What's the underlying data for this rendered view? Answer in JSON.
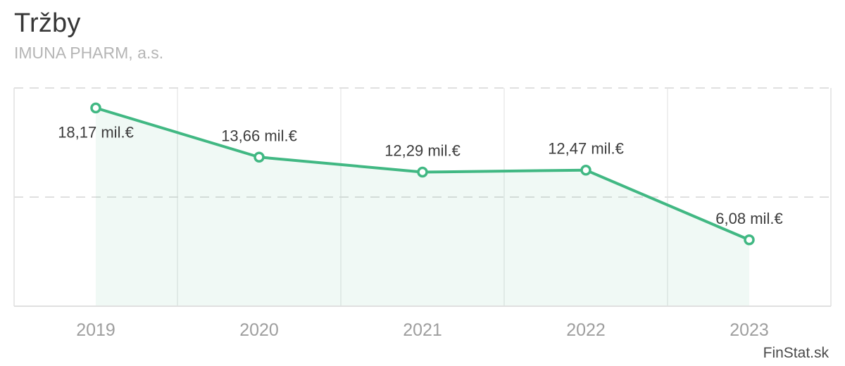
{
  "header": {
    "title": "Tržby",
    "subtitle": "IMUNA PHARM, a.s."
  },
  "watermark": "FinStat.sk",
  "chart_data": {
    "type": "line",
    "title": "Tržby",
    "subtitle": "IMUNA PHARM, a.s.",
    "categories": [
      "2019",
      "2020",
      "2021",
      "2022",
      "2023"
    ],
    "series": [
      {
        "name": "Tržby (mil. €)",
        "values": [
          18.17,
          13.66,
          12.29,
          12.47,
          6.08
        ],
        "point_labels": [
          "18,17 mil.€",
          "13,66 mil.€",
          "12,29 mil.€",
          "12,47 mil.€",
          "6,08 mil.€"
        ],
        "label_positions": [
          "below",
          "above",
          "above",
          "above",
          "above"
        ]
      }
    ],
    "unit": "mil.€",
    "xlabel": "",
    "ylabel": "",
    "ylim": [
      0,
      20
    ],
    "horizontal_gridline_values": [
      10,
      20
    ],
    "gridline_style": "dashed horizontal, solid vertical column separators",
    "legend_position": "none",
    "area_fill": true,
    "colors": {
      "line": "#41b883",
      "area_fill": "rgba(65, 184, 131, 0.08)",
      "marker_fill": "#ffffff",
      "marker_stroke": "#41b883",
      "grid_dashed": "#e0e0e0",
      "grid_vertical": "#eaeaea",
      "axis_line": "#e0e0e0",
      "plot_border": "#e8e8e8",
      "data_label_text": "#3c3c3c",
      "tick_label_text": "#9e9e9e"
    }
  }
}
